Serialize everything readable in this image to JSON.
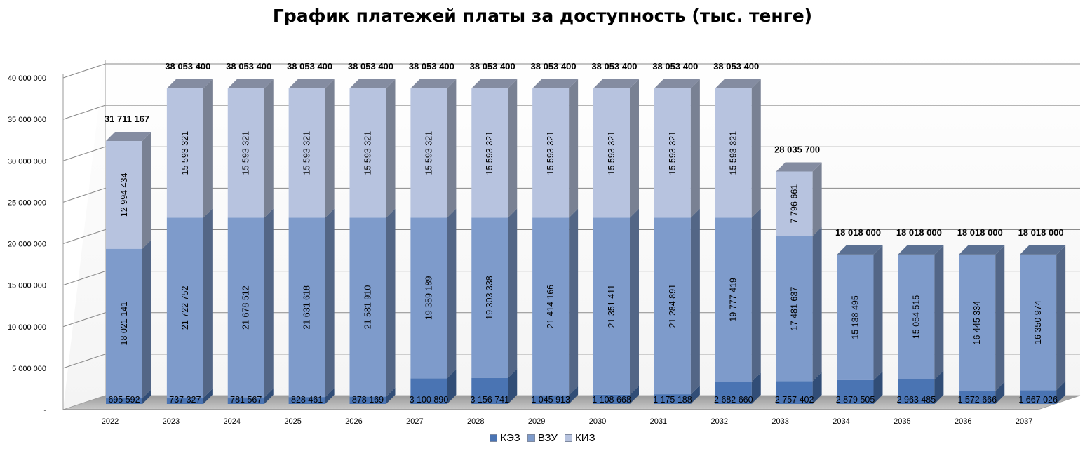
{
  "chart_data": {
    "type": "bar",
    "stacked": true,
    "title": "График платежей платы за доступность (тыс. тенге)",
    "categories": [
      "2022",
      "2023",
      "2024",
      "2025",
      "2026",
      "2027",
      "2028",
      "2029",
      "2030",
      "2031",
      "2032",
      "2033",
      "2034",
      "2035",
      "2036",
      "2037"
    ],
    "series": [
      {
        "name": "КЭЗ",
        "color": "#4a74b3",
        "values": [
          695592,
          737327,
          781567,
          828461,
          878169,
          3100890,
          3156741,
          1045913,
          1108668,
          1175188,
          2682660,
          2757402,
          2879505,
          2963485,
          1572666,
          1667026
        ],
        "labels": [
          "695 592",
          "737 327",
          "781 567",
          "828 461",
          "878 169",
          "3 100 890",
          "3 156 741",
          "1 045 913",
          "1 108 668",
          "1 175 188",
          "2 682 660",
          "2 757 402",
          "2 879 505",
          "2 963 485",
          "1 572 666",
          "1 667 026"
        ]
      },
      {
        "name": "ВЗУ",
        "color": "#7e9bcb",
        "values": [
          18021141,
          21722752,
          21678512,
          21631618,
          21581910,
          19359189,
          19303338,
          21414166,
          21351411,
          21284891,
          19777419,
          17481637,
          15138495,
          15054515,
          16445334,
          16350974
        ],
        "labels": [
          "18 021 141",
          "21 722 752",
          "21 678 512",
          "21 631 618",
          "21 581 910",
          "19 359 189",
          "19 303 338",
          "21 414 166",
          "21 351 411",
          "21 284 891",
          "19 777 419",
          "17 481 637",
          "15 138 495",
          "15 054 515",
          "16 445 334",
          "16 350 974"
        ]
      },
      {
        "name": "КИЗ",
        "color": "#b7c3df",
        "values": [
          12994434,
          15593321,
          15593321,
          15593321,
          15593321,
          15593321,
          15593321,
          15593321,
          15593321,
          15593321,
          15593321,
          7796661,
          0,
          0,
          0,
          0
        ],
        "labels": [
          "12 994 434",
          "15 593 321",
          "15 593 321",
          "15 593 321",
          "15 593 321",
          "15 593 321",
          "15 593 321",
          "15 593 321",
          "15 593 321",
          "15 593 321",
          "15 593 321",
          "7 796 661",
          "",
          "",
          "",
          ""
        ]
      }
    ],
    "totals": [
      "31 711 167",
      "38 053 400",
      "38 053 400",
      "38 053 400",
      "38 053 400",
      "38 053 400",
      "38 053 400",
      "38 053 400",
      "38 053 400",
      "38 053 400",
      "38 053 400",
      "28 035 700",
      "18 018 000",
      "18 018 000",
      "18 018 000",
      "18 018 000"
    ],
    "total_values": [
      31711167,
      38053400,
      38053400,
      38053400,
      38053400,
      38053400,
      38053400,
      38053400,
      38053400,
      38053400,
      38053400,
      28035700,
      18018000,
      18018000,
      18018000,
      18018000
    ],
    "ylim": [
      0,
      40000000
    ],
    "yticks": [
      "-",
      "5 000 000",
      "10 000 000",
      "15 000 000",
      "20 000 000",
      "25 000 000",
      "30 000 000",
      "35 000 000",
      "40 000 000"
    ],
    "ytick_values": [
      0,
      5000000,
      10000000,
      15000000,
      20000000,
      25000000,
      30000000,
      35000000,
      40000000
    ],
    "grid": true,
    "legend_position": "bottom"
  },
  "legend": {
    "items": [
      {
        "label": "КЭЗ",
        "color": "#4a74b3"
      },
      {
        "label": "ВЗУ",
        "color": "#7e9bcb"
      },
      {
        "label": "КИЗ",
        "color": "#b7c3df"
      }
    ]
  }
}
